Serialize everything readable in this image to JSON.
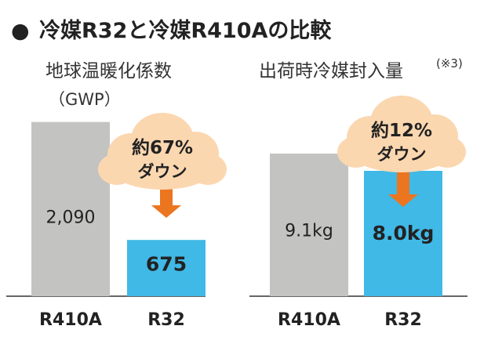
{
  "heading": {
    "bullet": "●",
    "text": "冷媒R32と冷媒R410Aの比較"
  },
  "colors": {
    "gray_bar": "#c3c3c2",
    "blue_bar": "#40b9e6",
    "cloud": "#fbd7b0",
    "arrow": "#ec7520",
    "baseline": "#666666",
    "text": "#222222"
  },
  "chart_data": [
    {
      "type": "bar",
      "title": "地球温暖化係数",
      "subtitle": "（GWP）",
      "categories": [
        "R410A",
        "R32"
      ],
      "values": [
        2090,
        675
      ],
      "value_labels": [
        "2,090",
        "675"
      ],
      "bar_colors": [
        "#c3c3c2",
        "#40b9e6"
      ],
      "ylim": [
        0,
        2350
      ],
      "annotation": {
        "line1": "約67%",
        "line2": "ダウン"
      }
    },
    {
      "type": "bar",
      "title": "出荷時冷媒封入量",
      "title_note": "(※3)",
      "subtitle": "",
      "categories": [
        "R410A",
        "R32"
      ],
      "values": [
        9.1,
        8.0
      ],
      "value_labels": [
        "9.1kg",
        "8.0kg"
      ],
      "bar_colors": [
        "#c3c3c2",
        "#40b9e6"
      ],
      "ylim": [
        0,
        12.5
      ],
      "annotation": {
        "line1": "約12%",
        "line2": "ダウン"
      }
    }
  ]
}
